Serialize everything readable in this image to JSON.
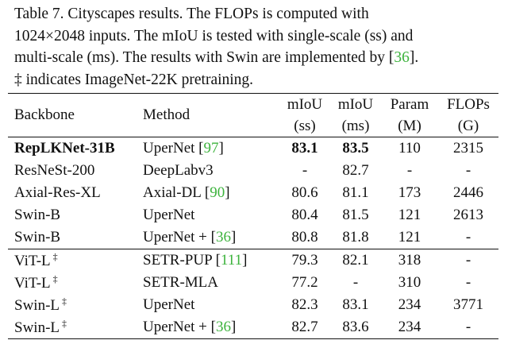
{
  "caption": {
    "line1": "Table 7.   Cityscapes results.   The FLOPs is computed with",
    "line2": "1024×2048 inputs. The mIoU is tested with single-scale (ss) and",
    "line3": "multi-scale (ms). The results with Swin are implemented by [",
    "line3_cite": "36",
    "line3_end": "].",
    "line4": "‡ indicates ImageNet-22K pretraining."
  },
  "table": {
    "headers": {
      "backbone": "Backbone",
      "method": "Method",
      "miou_ss_top": "mIoU",
      "miou_ss_bottom": "(ss)",
      "miou_ms_top": "mIoU",
      "miou_ms_bottom": "(ms)",
      "param_top": "Param",
      "param_bottom": "(M)",
      "flops_top": "FLOPs",
      "flops_bottom": "(G)"
    },
    "rows": [
      {
        "backbone": "RepLKNet-31B",
        "dagger": "",
        "method": "UperNet [",
        "cite": "97",
        "method_end": "]",
        "ss": "83.1",
        "ms": "83.5",
        "param": "110",
        "flops": "2315"
      },
      {
        "backbone": "ResNeSt-200",
        "dagger": "",
        "method": "DeepLabv3",
        "cite": "",
        "method_end": "",
        "ss": "-",
        "ms": "82.7",
        "param": "-",
        "flops": "-"
      },
      {
        "backbone": "Axial-Res-XL",
        "dagger": "",
        "method": "Axial-DL [",
        "cite": "90",
        "method_end": "]",
        "ss": "80.6",
        "ms": "81.1",
        "param": "173",
        "flops": "2446"
      },
      {
        "backbone": "Swin-B",
        "dagger": "",
        "method": "UperNet",
        "cite": "",
        "method_end": "",
        "ss": "80.4",
        "ms": "81.5",
        "param": "121",
        "flops": "2613"
      },
      {
        "backbone": "Swin-B",
        "dagger": "",
        "method": "UperNet + [",
        "cite": "36",
        "method_end": "]",
        "ss": "80.8",
        "ms": "81.8",
        "param": "121",
        "flops": "-"
      },
      {
        "backbone": "ViT-L",
        "dagger": "‡",
        "method": "SETR-PUP [",
        "cite": "111",
        "method_end": "]",
        "ss": "79.3",
        "ms": "82.1",
        "param": "318",
        "flops": "-"
      },
      {
        "backbone": "ViT-L",
        "dagger": "‡",
        "method": "SETR-MLA",
        "cite": "",
        "method_end": "",
        "ss": "77.2",
        "ms": "-",
        "param": "310",
        "flops": "-"
      },
      {
        "backbone": "Swin-L",
        "dagger": "‡",
        "method": "UperNet",
        "cite": "",
        "method_end": "",
        "ss": "82.3",
        "ms": "83.1",
        "param": "234",
        "flops": "3771"
      },
      {
        "backbone": "Swin-L",
        "dagger": "‡",
        "method": "UperNet + [",
        "cite": "36",
        "method_end": "]",
        "ss": "82.7",
        "ms": "83.6",
        "param": "234",
        "flops": "-"
      }
    ]
  }
}
